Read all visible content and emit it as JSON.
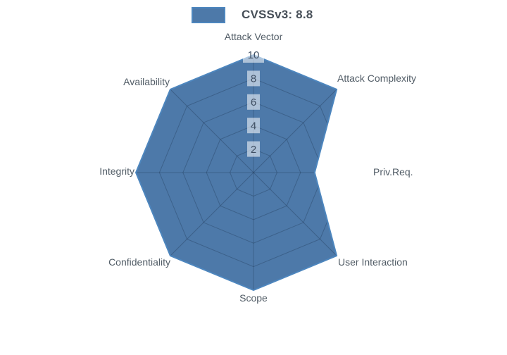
{
  "legend": {
    "label": "CVSSv3: 8.8",
    "swatch_fill": "#4d79a9",
    "swatch_border": "#4d86be"
  },
  "colors": {
    "series_fill": "#4d79a9",
    "series_line": "#4d86be",
    "grid_line_inside": "rgba(26,47,74,0.32)",
    "axis_label": "#515c66",
    "tick_label": "#3f4f63",
    "tick_label_bg": "rgba(255,255,255,0.55)",
    "legend_text": "#474f58",
    "background": "#ffffff"
  },
  "chart_data": {
    "type": "radar",
    "title": "",
    "categories": [
      "Attack Vector",
      "Attack Complexity",
      "Priv.Req.",
      "User Interaction",
      "Scope",
      "Confidentiality",
      "Integrity",
      "Availability"
    ],
    "series": [
      {
        "name": "CVSSv3: 8.8",
        "values": [
          10,
          10,
          5.2,
          10,
          10,
          10,
          10,
          10
        ]
      }
    ],
    "radial_ticks": [
      2,
      4,
      6,
      8,
      10
    ],
    "range": [
      0,
      10
    ],
    "axes_count": 8,
    "grid": "spider-web",
    "legend_position": "top-center"
  }
}
